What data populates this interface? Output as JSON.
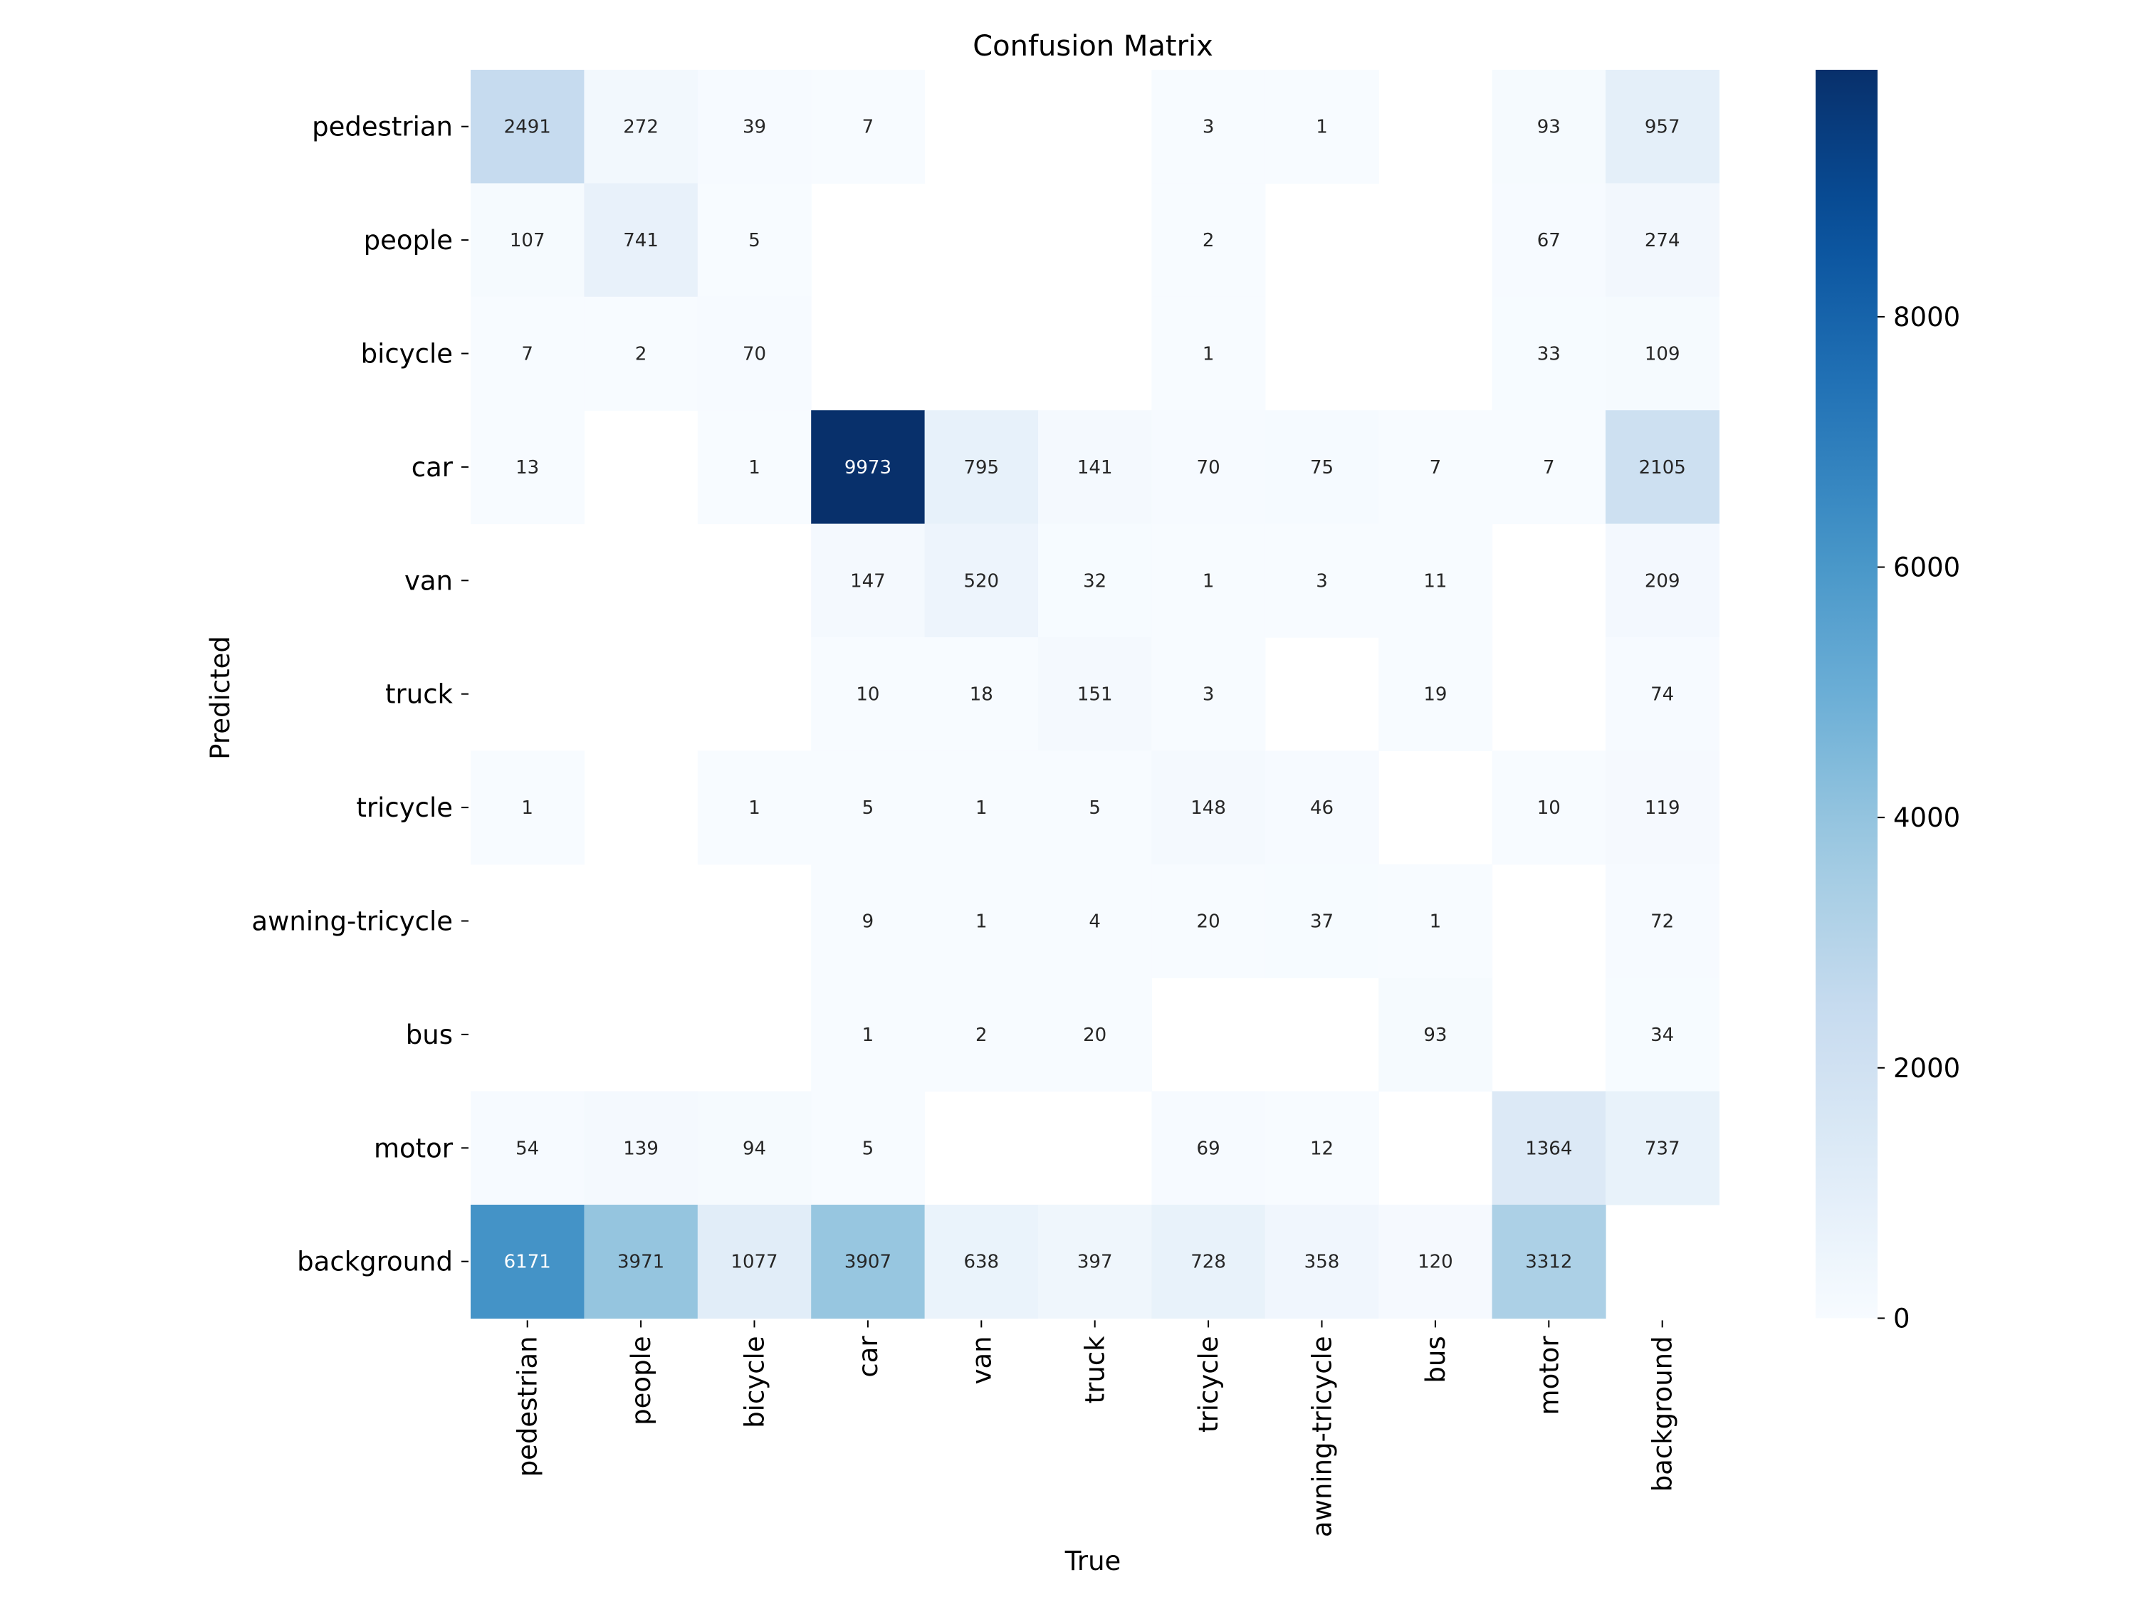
{
  "chart_data": {
    "type": "heatmap",
    "title": "Confusion Matrix",
    "xlabel": "True",
    "ylabel": "Predicted",
    "x_categories": [
      "pedestrian",
      "people",
      "bicycle",
      "car",
      "van",
      "truck",
      "tricycle",
      "awning-tricycle",
      "bus",
      "motor",
      "background"
    ],
    "y_categories": [
      "pedestrian",
      "people",
      "bicycle",
      "car",
      "van",
      "truck",
      "tricycle",
      "awning-tricycle",
      "bus",
      "motor",
      "background"
    ],
    "values": [
      [
        2491,
        272,
        39,
        7,
        null,
        null,
        3,
        1,
        null,
        93,
        957
      ],
      [
        107,
        741,
        5,
        null,
        null,
        null,
        2,
        null,
        null,
        67,
        274
      ],
      [
        7,
        2,
        70,
        null,
        null,
        null,
        1,
        null,
        null,
        33,
        109
      ],
      [
        13,
        null,
        1,
        9973,
        795,
        141,
        70,
        75,
        7,
        7,
        2105
      ],
      [
        null,
        null,
        null,
        147,
        520,
        32,
        1,
        3,
        11,
        null,
        209
      ],
      [
        null,
        null,
        null,
        10,
        18,
        151,
        3,
        null,
        19,
        null,
        74
      ],
      [
        1,
        null,
        1,
        5,
        1,
        5,
        148,
        46,
        null,
        10,
        119
      ],
      [
        null,
        null,
        null,
        9,
        1,
        4,
        20,
        37,
        1,
        null,
        72
      ],
      [
        null,
        null,
        null,
        1,
        2,
        20,
        null,
        null,
        93,
        null,
        34
      ],
      [
        54,
        139,
        94,
        5,
        null,
        null,
        69,
        12,
        null,
        1364,
        737
      ],
      [
        6171,
        3971,
        1077,
        3907,
        638,
        397,
        728,
        358,
        120,
        3312,
        null
      ]
    ],
    "colorbar": {
      "min": 0,
      "max": 9973,
      "ticks": [
        0,
        2000,
        4000,
        6000,
        8000
      ],
      "colormap": "Blues"
    }
  }
}
